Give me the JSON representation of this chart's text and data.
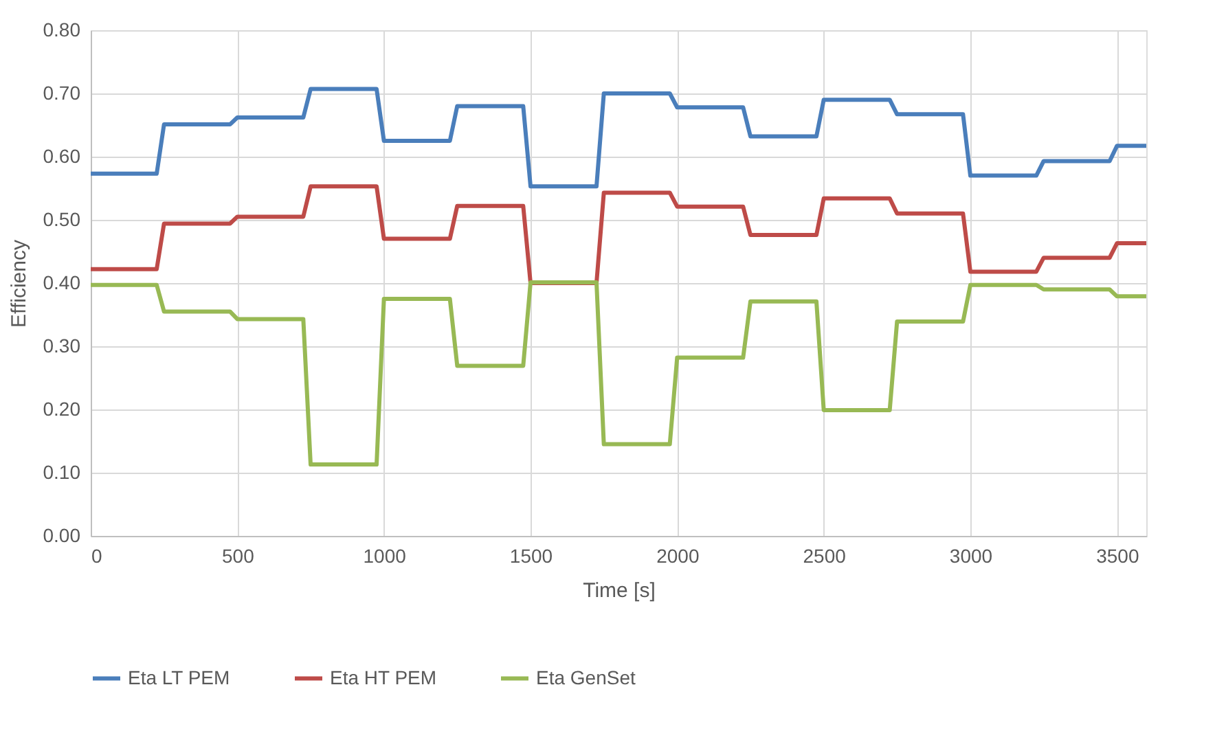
{
  "chart_data": {
    "type": "line",
    "xlabel": "Time [s]",
    "ylabel": "Efficiency",
    "x": [
      0,
      225,
      250,
      475,
      500,
      725,
      750,
      975,
      1000,
      1225,
      1250,
      1475,
      1500,
      1725,
      1750,
      1975,
      2000,
      2225,
      2250,
      2475,
      2500,
      2725,
      2750,
      2975,
      3000,
      3225,
      3250,
      3475,
      3500,
      3600
    ],
    "series": [
      {
        "name": "Eta LT PEM",
        "color": "#4a7ebb",
        "values": [
          0.573,
          0.573,
          0.651,
          0.651,
          0.662,
          0.662,
          0.707,
          0.707,
          0.625,
          0.625,
          0.68,
          0.68,
          0.553,
          0.553,
          0.7,
          0.7,
          0.678,
          0.678,
          0.632,
          0.632,
          0.69,
          0.69,
          0.667,
          0.667,
          0.57,
          0.57,
          0.593,
          0.593,
          0.617,
          0.617
        ]
      },
      {
        "name": "Eta HT PEM",
        "color": "#be4b48",
        "values": [
          0.422,
          0.422,
          0.494,
          0.494,
          0.505,
          0.505,
          0.553,
          0.553,
          0.47,
          0.47,
          0.522,
          0.522,
          0.4,
          0.4,
          0.543,
          0.543,
          0.521,
          0.521,
          0.476,
          0.476,
          0.534,
          0.534,
          0.51,
          0.51,
          0.418,
          0.418,
          0.44,
          0.44,
          0.463,
          0.463
        ]
      },
      {
        "name": "Eta GenSet",
        "color": "#98b954",
        "values": [
          0.397,
          0.397,
          0.355,
          0.355,
          0.343,
          0.343,
          0.113,
          0.113,
          0.375,
          0.375,
          0.269,
          0.269,
          0.401,
          0.401,
          0.145,
          0.145,
          0.282,
          0.282,
          0.371,
          0.371,
          0.199,
          0.199,
          0.339,
          0.339,
          0.397,
          0.397,
          0.39,
          0.39,
          0.379,
          0.379
        ]
      }
    ],
    "xlim": [
      0,
      3600
    ],
    "xticks": [
      0,
      500,
      1000,
      1500,
      2000,
      2500,
      3000,
      3500
    ],
    "ylim": [
      0,
      0.8
    ],
    "yticks": [
      {
        "value": 0,
        "label": "0.00"
      },
      {
        "value": 0.1,
        "label": "0.10"
      },
      {
        "value": 0.2,
        "label": "0.20"
      },
      {
        "value": 0.3,
        "label": "0.30"
      },
      {
        "value": 0.4,
        "label": "0.40"
      },
      {
        "value": 0.5,
        "label": "0.50"
      },
      {
        "value": 0.6,
        "label": "0.60"
      },
      {
        "value": 0.7,
        "label": "0.70"
      },
      {
        "value": 0.8,
        "label": "0.80"
      }
    ],
    "grid": true,
    "legend": "bottom",
    "marker": "none",
    "line_style": "solid"
  }
}
